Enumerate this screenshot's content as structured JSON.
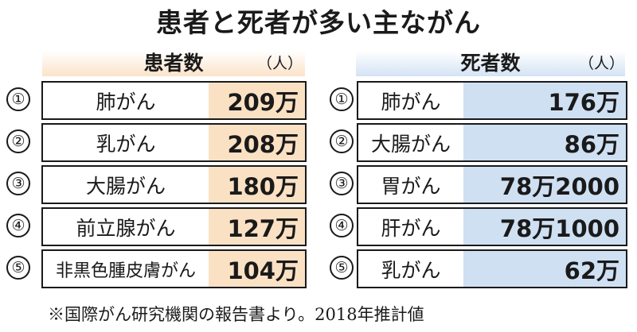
{
  "title": "患者と死者が多い主ながん",
  "left": {
    "header": "患者数",
    "unit": "（人）",
    "rows": [
      {
        "rank": "①",
        "name": "肺がん",
        "value": "209万"
      },
      {
        "rank": "②",
        "name": "乳がん",
        "value": "208万"
      },
      {
        "rank": "③",
        "name": "大腸がん",
        "value": "180万"
      },
      {
        "rank": "④",
        "name": "前立腺がん",
        "value": "127万"
      },
      {
        "rank": "⑤",
        "name": "非黒色腫皮膚がん",
        "value": "104万"
      }
    ]
  },
  "right": {
    "header": "死者数",
    "unit": "（人）",
    "rows": [
      {
        "rank": "①",
        "name": "肺がん",
        "value": "176万"
      },
      {
        "rank": "②",
        "name": "大腸がん",
        "value": "86万"
      },
      {
        "rank": "③",
        "name": "胃がん",
        "value": "78万2000"
      },
      {
        "rank": "④",
        "name": "肝がん",
        "value": "78万1000"
      },
      {
        "rank": "⑤",
        "name": "乳がん",
        "value": "62万"
      }
    ]
  },
  "footnote": "※国際がん研究機関の報告書より。2018年推計値",
  "colors": {
    "patients_accent": "#fbe1c4",
    "deaths_accent": "#cfe0f3"
  }
}
